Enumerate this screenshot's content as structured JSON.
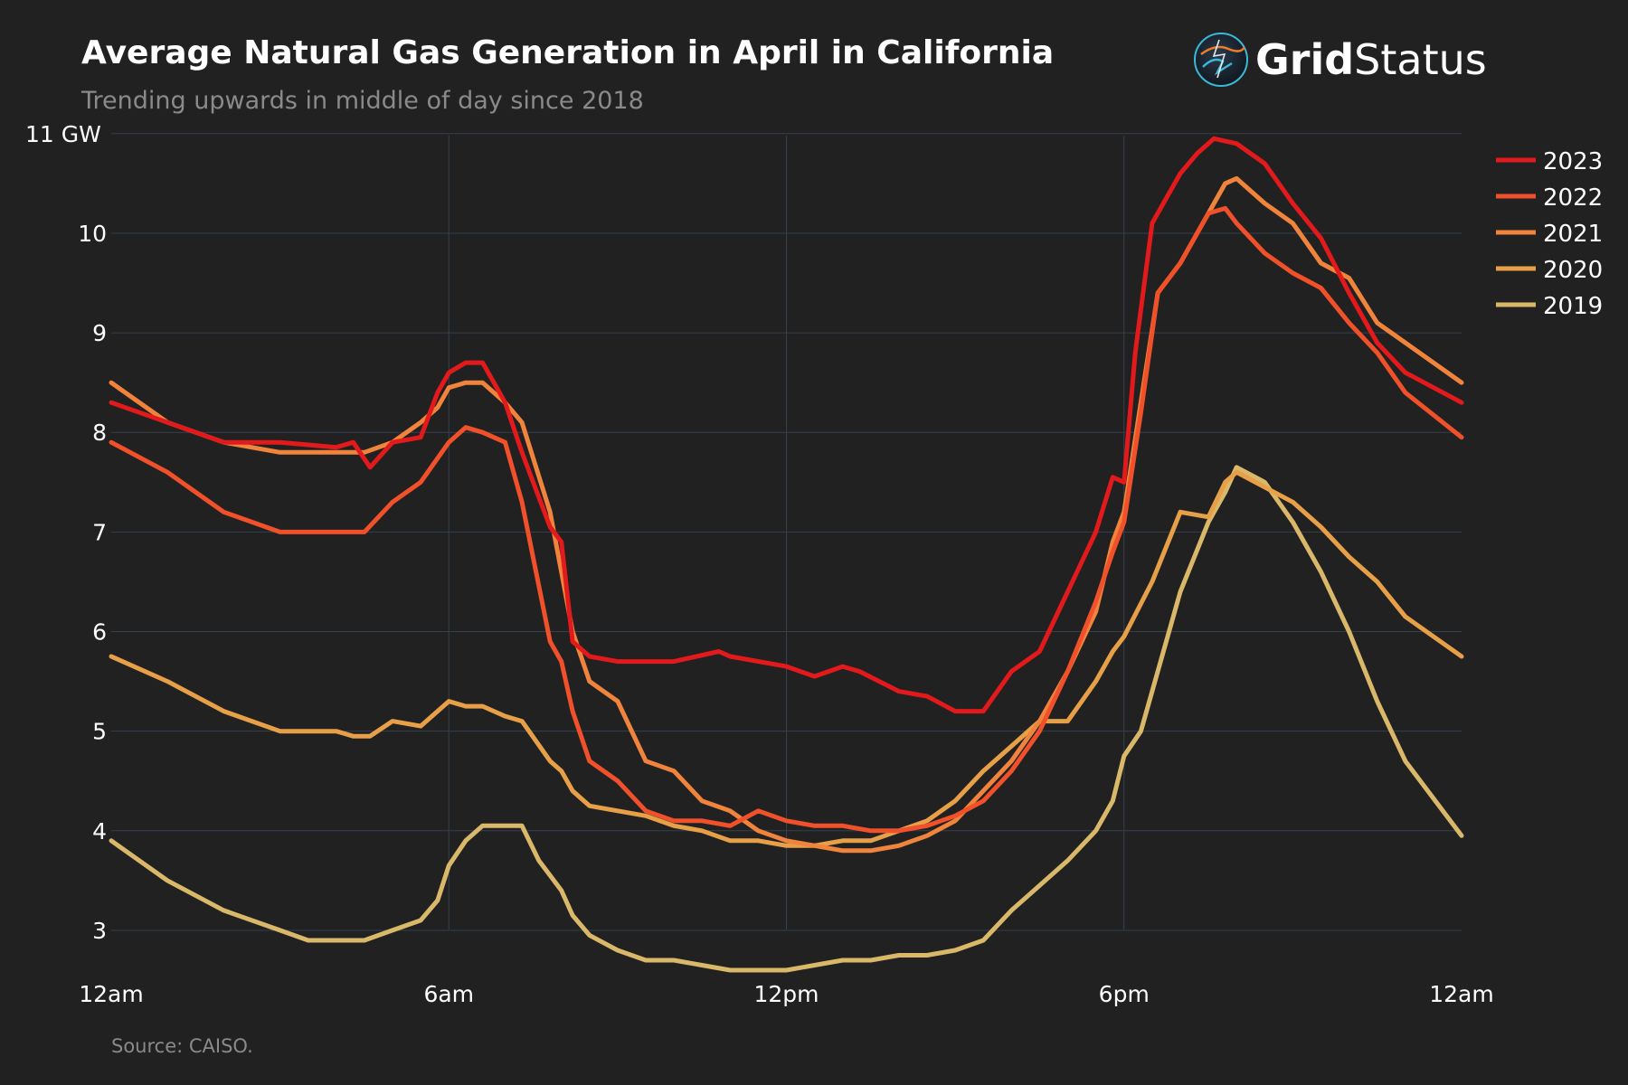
{
  "header": {
    "title": "Average Natural Gas Generation in April in California",
    "subtitle": "Trending upwards in middle of day since 2018"
  },
  "logo": {
    "bold": "Grid",
    "light": "Status"
  },
  "source": "Source: CAISO.",
  "colors": {
    "background": "#212121",
    "grid": "#34404f",
    "text": "#ffffff",
    "muted": "#8a8a8a"
  },
  "chart_data": {
    "type": "line",
    "title": "Average Natural Gas Generation in April in California",
    "subtitle": "Trending upwards in middle of day since 2018",
    "xlabel": "",
    "ylabel": "",
    "x_unit": "hour of day",
    "xlim": [
      0,
      24
    ],
    "ylim": [
      2.6,
      11
    ],
    "x_ticks": [
      {
        "value": 0,
        "label": "12am"
      },
      {
        "value": 6,
        "label": "6am"
      },
      {
        "value": 12,
        "label": "12pm"
      },
      {
        "value": 18,
        "label": "6pm"
      },
      {
        "value": 24,
        "label": "12am"
      }
    ],
    "y_ticks": [
      {
        "value": 3,
        "label": "3"
      },
      {
        "value": 4,
        "label": "4"
      },
      {
        "value": 5,
        "label": "5"
      },
      {
        "value": 6,
        "label": "6"
      },
      {
        "value": 7,
        "label": "7"
      },
      {
        "value": 8,
        "label": "8"
      },
      {
        "value": 9,
        "label": "9"
      },
      {
        "value": 10,
        "label": "10"
      },
      {
        "value": 11,
        "label": "11 GW"
      }
    ],
    "legend_position": "top-right",
    "grid": true,
    "series": [
      {
        "name": "2023",
        "color": "#e31a1c",
        "x": [
          0,
          1,
          2,
          3,
          4,
          4.3,
          4.6,
          5,
          5.5,
          5.8,
          6,
          6.3,
          6.6,
          7,
          7.3,
          7.8,
          8,
          8.2,
          8.5,
          9,
          10,
          10.8,
          11,
          12,
          12.5,
          13,
          13.3,
          14,
          14.5,
          15,
          15.5,
          16,
          16.5,
          17,
          17.5,
          17.8,
          18,
          18.2,
          18.5,
          18.7,
          19,
          19.3,
          19.6,
          20,
          20.5,
          21,
          21.5,
          22,
          22.5,
          23,
          24
        ],
        "values": [
          8.3,
          8.1,
          7.9,
          7.9,
          7.85,
          7.9,
          7.65,
          7.9,
          7.95,
          8.4,
          8.6,
          8.7,
          8.7,
          8.3,
          7.8,
          7.05,
          6.9,
          5.9,
          5.75,
          5.7,
          5.7,
          5.8,
          5.75,
          5.65,
          5.55,
          5.65,
          5.6,
          5.4,
          5.35,
          5.2,
          5.2,
          5.6,
          5.8,
          6.4,
          7.0,
          7.55,
          7.5,
          8.8,
          10.1,
          10.3,
          10.6,
          10.8,
          10.95,
          10.9,
          10.7,
          10.3,
          9.95,
          9.4,
          8.9,
          8.6,
          8.3
        ]
      },
      {
        "name": "2022",
        "color": "#f0502a",
        "x": [
          0,
          1,
          2,
          3,
          4,
          4.5,
          5,
          5.5,
          6,
          6.3,
          6.6,
          7,
          7.3,
          7.8,
          8,
          8.2,
          8.5,
          9,
          9.5,
          10,
          10.5,
          11,
          11.5,
          12,
          12.5,
          13,
          13.5,
          14,
          14.5,
          15,
          15.5,
          16,
          16.5,
          17,
          17.5,
          17.8,
          18,
          18.3,
          18.6,
          19,
          19.5,
          19.8,
          20,
          20.5,
          21,
          21.5,
          22,
          22.5,
          23,
          24
        ],
        "values": [
          7.9,
          7.6,
          7.2,
          7.0,
          7.0,
          7.0,
          7.3,
          7.5,
          7.9,
          8.05,
          8.0,
          7.9,
          7.3,
          5.9,
          5.7,
          5.2,
          4.7,
          4.5,
          4.2,
          4.1,
          4.1,
          4.05,
          4.2,
          4.1,
          4.05,
          4.05,
          4.0,
          4.0,
          4.05,
          4.15,
          4.3,
          4.6,
          5.0,
          5.6,
          6.3,
          6.8,
          7.1,
          8.2,
          9.4,
          9.7,
          10.2,
          10.25,
          10.1,
          9.8,
          9.6,
          9.45,
          9.1,
          8.8,
          8.4,
          7.95
        ]
      },
      {
        "name": "2021",
        "color": "#f0843c",
        "x": [
          0,
          1,
          2,
          3,
          4,
          4.5,
          5,
          5.5,
          5.8,
          6,
          6.3,
          6.6,
          7,
          7.3,
          7.8,
          8,
          8.2,
          8.5,
          9,
          9.5,
          10,
          10.5,
          11,
          11.5,
          12,
          12.5,
          13,
          13.5,
          14,
          14.5,
          15,
          15.5,
          16,
          16.5,
          17,
          17.5,
          17.8,
          18,
          18.3,
          18.6,
          19,
          19.5,
          19.8,
          20,
          20.5,
          21,
          21.5,
          22,
          22.5,
          23,
          24
        ],
        "values": [
          8.5,
          8.1,
          7.9,
          7.8,
          7.8,
          7.8,
          7.9,
          8.1,
          8.25,
          8.45,
          8.5,
          8.5,
          8.3,
          8.1,
          7.2,
          6.6,
          6.0,
          5.5,
          5.3,
          4.7,
          4.6,
          4.3,
          4.2,
          4.0,
          3.9,
          3.85,
          3.8,
          3.8,
          3.85,
          3.95,
          4.1,
          4.4,
          4.7,
          5.1,
          5.6,
          6.2,
          6.9,
          7.2,
          8.3,
          9.4,
          9.7,
          10.2,
          10.5,
          10.55,
          10.3,
          10.1,
          9.7,
          9.55,
          9.1,
          8.9,
          8.5
        ]
      },
      {
        "name": "2020",
        "color": "#e8a048",
        "x": [
          0,
          1,
          2,
          3,
          4,
          4.3,
          4.6,
          5,
          5.5,
          5.8,
          6,
          6.3,
          6.6,
          7,
          7.3,
          7.8,
          8,
          8.2,
          8.5,
          9,
          9.5,
          10,
          10.5,
          11,
          11.5,
          12,
          12.5,
          13,
          13.5,
          14,
          14.5,
          15,
          15.5,
          16,
          16.5,
          17,
          17.5,
          17.8,
          18,
          18.5,
          19,
          19.5,
          19.8,
          20,
          20.5,
          21,
          21.5,
          22,
          22.5,
          23,
          24
        ],
        "values": [
          5.75,
          5.5,
          5.2,
          5.0,
          5.0,
          4.95,
          4.95,
          5.1,
          5.05,
          5.2,
          5.3,
          5.25,
          5.25,
          5.15,
          5.1,
          4.7,
          4.6,
          4.4,
          4.25,
          4.2,
          4.15,
          4.05,
          4.0,
          3.9,
          3.9,
          3.85,
          3.85,
          3.9,
          3.9,
          4.0,
          4.1,
          4.3,
          4.6,
          4.85,
          5.1,
          5.1,
          5.5,
          5.8,
          5.95,
          6.5,
          7.2,
          7.15,
          7.5,
          7.6,
          7.45,
          7.3,
          7.05,
          6.75,
          6.5,
          6.15,
          5.75
        ]
      },
      {
        "name": "2019",
        "color": "#d9b86a",
        "x": [
          0,
          1,
          2,
          3,
          3.5,
          4,
          4.5,
          5,
          5.5,
          5.8,
          6,
          6.3,
          6.6,
          7,
          7.3,
          7.6,
          8,
          8.2,
          8.5,
          9,
          9.5,
          10,
          10.5,
          11,
          11.5,
          12,
          12.5,
          13,
          13.5,
          14,
          14.5,
          15,
          15.5,
          16,
          16.5,
          17,
          17.5,
          17.8,
          18,
          18.3,
          18.6,
          19,
          19.5,
          19.8,
          20,
          20.5,
          21,
          21.5,
          22,
          22.5,
          23,
          24
        ],
        "values": [
          3.9,
          3.5,
          3.2,
          3.0,
          2.9,
          2.9,
          2.9,
          3.0,
          3.1,
          3.3,
          3.65,
          3.9,
          4.05,
          4.05,
          4.05,
          3.7,
          3.4,
          3.15,
          2.95,
          2.8,
          2.7,
          2.7,
          2.65,
          2.6,
          2.6,
          2.6,
          2.65,
          2.7,
          2.7,
          2.75,
          2.75,
          2.8,
          2.9,
          3.2,
          3.45,
          3.7,
          4.0,
          4.3,
          4.75,
          5.0,
          5.6,
          6.4,
          7.1,
          7.4,
          7.65,
          7.5,
          7.1,
          6.6,
          6.0,
          5.3,
          4.7,
          3.95
        ]
      }
    ]
  }
}
